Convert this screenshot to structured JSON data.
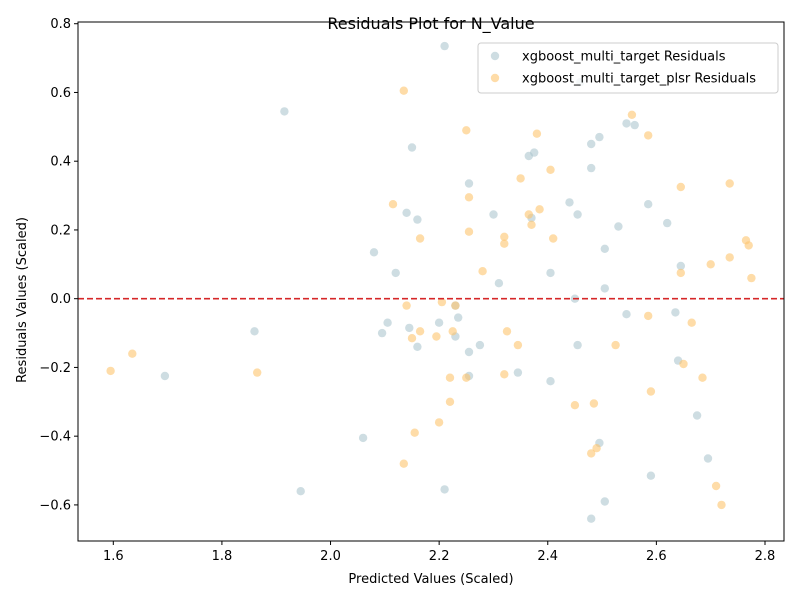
{
  "chart_data": {
    "type": "scatter",
    "title": "Residuals Plot for N_Value",
    "xlabel": "Predicted Values (Scaled)",
    "ylabel": "Residuals Values (Scaled)",
    "xlim": [
      1.535,
      2.835
    ],
    "ylim": [
      -0.705,
      0.805
    ],
    "xticks": [
      1.6,
      1.8,
      2.0,
      2.2,
      2.4,
      2.6,
      2.8
    ],
    "xtick_labels": [
      "1.6",
      "1.8",
      "2.0",
      "2.2",
      "2.4",
      "2.6",
      "2.8"
    ],
    "yticks": [
      -0.6,
      -0.4,
      -0.2,
      0.0,
      0.2,
      0.4,
      0.6,
      0.8
    ],
    "ytick_labels": [
      "−0.6",
      "−0.4",
      "−0.2",
      "0.0",
      "0.2",
      "0.4",
      "0.6",
      "0.8"
    ],
    "reference_line": {
      "y": 0,
      "color": "#d62728",
      "style": "dashed"
    },
    "grid": false,
    "legend_position": "upper right",
    "series": [
      {
        "name": "xgboost_multi_target Residuals",
        "color": "#aec7cf",
        "points": [
          [
            2.21,
            0.735
          ],
          [
            1.915,
            0.545
          ],
          [
            2.46,
            0.63
          ],
          [
            2.545,
            0.51
          ],
          [
            2.56,
            0.505
          ],
          [
            2.495,
            0.47
          ],
          [
            2.48,
            0.45
          ],
          [
            2.15,
            0.44
          ],
          [
            2.375,
            0.425
          ],
          [
            2.365,
            0.415
          ],
          [
            2.48,
            0.38
          ],
          [
            2.255,
            0.335
          ],
          [
            2.44,
            0.28
          ],
          [
            2.585,
            0.275
          ],
          [
            2.14,
            0.25
          ],
          [
            2.3,
            0.245
          ],
          [
            2.455,
            0.245
          ],
          [
            2.16,
            0.23
          ],
          [
            2.37,
            0.235
          ],
          [
            2.62,
            0.22
          ],
          [
            2.53,
            0.21
          ],
          [
            2.505,
            0.145
          ],
          [
            2.08,
            0.135
          ],
          [
            2.645,
            0.095
          ],
          [
            2.12,
            0.075
          ],
          [
            2.405,
            0.075
          ],
          [
            2.31,
            0.045
          ],
          [
            2.505,
            0.03
          ],
          [
            2.45,
            0.0
          ],
          [
            2.23,
            -0.02
          ],
          [
            2.545,
            -0.045
          ],
          [
            2.635,
            -0.04
          ],
          [
            2.235,
            -0.055
          ],
          [
            2.2,
            -0.07
          ],
          [
            2.105,
            -0.07
          ],
          [
            2.145,
            -0.085
          ],
          [
            1.86,
            -0.095
          ],
          [
            2.095,
            -0.1
          ],
          [
            2.23,
            -0.11
          ],
          [
            2.16,
            -0.14
          ],
          [
            2.275,
            -0.135
          ],
          [
            2.455,
            -0.135
          ],
          [
            2.255,
            -0.155
          ],
          [
            2.64,
            -0.18
          ],
          [
            2.345,
            -0.215
          ],
          [
            1.695,
            -0.225
          ],
          [
            2.255,
            -0.225
          ],
          [
            2.405,
            -0.24
          ],
          [
            2.675,
            -0.34
          ],
          [
            2.06,
            -0.405
          ],
          [
            2.495,
            -0.42
          ],
          [
            2.695,
            -0.465
          ],
          [
            2.59,
            -0.515
          ],
          [
            1.945,
            -0.56
          ],
          [
            2.21,
            -0.555
          ],
          [
            2.505,
            -0.59
          ],
          [
            2.48,
            -0.64
          ]
        ]
      },
      {
        "name": "xgboost_multi_target_plsr Residuals",
        "color": "#fdc56e",
        "points": [
          [
            2.135,
            0.605
          ],
          [
            2.555,
            0.535
          ],
          [
            2.25,
            0.49
          ],
          [
            2.38,
            0.48
          ],
          [
            2.585,
            0.475
          ],
          [
            2.405,
            0.375
          ],
          [
            2.35,
            0.35
          ],
          [
            2.735,
            0.335
          ],
          [
            2.645,
            0.325
          ],
          [
            2.255,
            0.295
          ],
          [
            2.115,
            0.275
          ],
          [
            2.385,
            0.26
          ],
          [
            2.365,
            0.245
          ],
          [
            2.37,
            0.215
          ],
          [
            2.255,
            0.195
          ],
          [
            2.32,
            0.18
          ],
          [
            2.165,
            0.175
          ],
          [
            2.41,
            0.175
          ],
          [
            2.765,
            0.17
          ],
          [
            2.77,
            0.155
          ],
          [
            2.32,
            0.16
          ],
          [
            2.735,
            0.12
          ],
          [
            2.7,
            0.1
          ],
          [
            2.28,
            0.08
          ],
          [
            2.645,
            0.075
          ],
          [
            2.775,
            0.06
          ],
          [
            2.205,
            -0.01
          ],
          [
            2.14,
            -0.02
          ],
          [
            2.23,
            -0.02
          ],
          [
            2.585,
            -0.05
          ],
          [
            2.665,
            -0.07
          ],
          [
            2.165,
            -0.095
          ],
          [
            2.225,
            -0.095
          ],
          [
            2.325,
            -0.095
          ],
          [
            2.195,
            -0.11
          ],
          [
            2.15,
            -0.115
          ],
          [
            2.345,
            -0.135
          ],
          [
            2.525,
            -0.135
          ],
          [
            1.635,
            -0.16
          ],
          [
            2.65,
            -0.19
          ],
          [
            1.595,
            -0.21
          ],
          [
            1.865,
            -0.215
          ],
          [
            2.32,
            -0.22
          ],
          [
            2.22,
            -0.23
          ],
          [
            2.25,
            -0.23
          ],
          [
            2.685,
            -0.23
          ],
          [
            2.59,
            -0.27
          ],
          [
            2.22,
            -0.3
          ],
          [
            2.45,
            -0.31
          ],
          [
            2.485,
            -0.305
          ],
          [
            2.2,
            -0.36
          ],
          [
            2.155,
            -0.39
          ],
          [
            2.49,
            -0.435
          ],
          [
            2.48,
            -0.45
          ],
          [
            2.135,
            -0.48
          ],
          [
            2.71,
            -0.545
          ],
          [
            2.72,
            -0.6
          ]
        ]
      }
    ]
  }
}
